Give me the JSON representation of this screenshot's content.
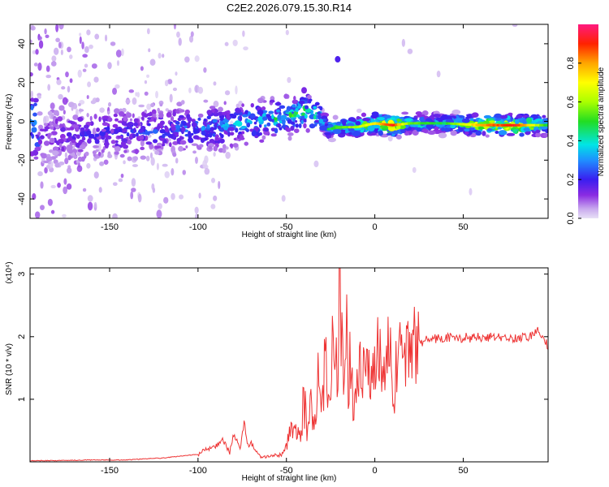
{
  "title": "C2E2.2026.079.15.30.R14",
  "chart_data": [
    {
      "type": "heatmap",
      "name": "spectrogram",
      "xlabel": "Height of straight line (km)",
      "ylabel": "Frequency (Hz)",
      "xlim": [
        -195,
        98
      ],
      "ylim": [
        -50,
        50
      ],
      "xticks": [
        -150,
        -100,
        -50,
        0,
        50
      ],
      "yticks": [
        -40,
        -20,
        0,
        20,
        40
      ],
      "colorbar": {
        "label": "Normalized spectral amplitude",
        "range": [
          0,
          1
        ],
        "ticks": [
          "0.0",
          "0.2",
          "0.4",
          "0.6",
          "0.8"
        ],
        "colormap": [
          "#e8e0f6",
          "#c8a8ee",
          "#8a2be2",
          "#3a1ef0",
          "#1e90ff",
          "#00e5e5",
          "#22dd22",
          "#aaff00",
          "#ffff00",
          "#ffa500",
          "#ff2200",
          "#ff1a80"
        ]
      },
      "ridge": [
        {
          "x": -190,
          "f": -7,
          "a": 0.22
        },
        {
          "x": -170,
          "f": -7,
          "a": 0.28
        },
        {
          "x": -150,
          "f": -6,
          "a": 0.3
        },
        {
          "x": -130,
          "f": -5,
          "a": 0.32
        },
        {
          "x": -110,
          "f": -4,
          "a": 0.35
        },
        {
          "x": -90,
          "f": -3,
          "a": 0.4
        },
        {
          "x": -75,
          "f": -1,
          "a": 0.45
        },
        {
          "x": -60,
          "f": 1,
          "a": 0.5
        },
        {
          "x": -50,
          "f": 2,
          "a": 0.55
        },
        {
          "x": -40,
          "f": 5,
          "a": 0.6
        },
        {
          "x": -32,
          "f": 3,
          "a": 0.55
        },
        {
          "x": -26,
          "f": -4,
          "a": 0.5
        },
        {
          "x": -20,
          "f": -3,
          "a": 0.55
        },
        {
          "x": -10,
          "f": -3,
          "a": 0.62
        },
        {
          "x": 0,
          "f": -1,
          "a": 0.72
        },
        {
          "x": 10,
          "f": -2,
          "a": 0.9
        },
        {
          "x": 20,
          "f": -1,
          "a": 0.55
        },
        {
          "x": 40,
          "f": -1,
          "a": 0.5
        },
        {
          "x": 60,
          "f": -2,
          "a": 0.8
        },
        {
          "x": 80,
          "f": -2,
          "a": 0.9
        },
        {
          "x": 98,
          "f": -2,
          "a": 0.5
        }
      ],
      "isolated_features": [
        {
          "x": -21,
          "f": 32,
          "a": 0.25
        },
        {
          "x": -40,
          "f": 16,
          "a": 0.2
        }
      ]
    },
    {
      "type": "line",
      "name": "snr",
      "xlabel": "Height of straight line (km)",
      "ylabel": "SNR (10 * v/v)",
      "y_scale_note": "(x10⁴)",
      "xlim": [
        -195,
        98
      ],
      "ylim": [
        0,
        3.1
      ],
      "xticks": [
        -150,
        -100,
        -50,
        0,
        50
      ],
      "yticks": [
        1,
        2,
        3
      ],
      "color": "#ee3333",
      "series": [
        {
          "name": "SNR",
          "x": [
            -195,
            -180,
            -160,
            -140,
            -130,
            -120,
            -110,
            -100,
            -95,
            -90,
            -86,
            -82,
            -80,
            -76,
            -74,
            -72,
            -70,
            -65,
            -60,
            -55,
            -52,
            -50,
            -48,
            -45,
            -42,
            -40,
            -38,
            -36,
            -34,
            -32,
            -30,
            -28,
            -26,
            -24,
            -22,
            -21,
            -20,
            -19,
            -18,
            -17,
            -16,
            -15,
            -14,
            -12,
            -10,
            -8,
            -6,
            -4,
            -2,
            0,
            2,
            5,
            8,
            10,
            11,
            12,
            14,
            16,
            20,
            25,
            30,
            35,
            40,
            50,
            60,
            70,
            80,
            88,
            92,
            95,
            98
          ],
          "values": [
            0.02,
            0.02,
            0.03,
            0.03,
            0.05,
            0.06,
            0.09,
            0.12,
            0.2,
            0.25,
            0.35,
            0.15,
            0.45,
            0.2,
            0.65,
            0.25,
            0.3,
            0.1,
            0.08,
            0.1,
            0.12,
            0.3,
            0.45,
            0.4,
            0.55,
            1.0,
            0.5,
            1.1,
            0.6,
            1.3,
            0.7,
            1.6,
            1.0,
            1.9,
            2.3,
            1.6,
            3.1,
            2.0,
            1.4,
            1.2,
            2.2,
            1.0,
            1.6,
            0.9,
            1.2,
            1.5,
            1.4,
            1.5,
            1.3,
            1.55,
            1.75,
            1.4,
            2.1,
            1.2,
            0.55,
            1.7,
            1.65,
            1.75,
            1.85,
            1.9,
            1.95,
            1.97,
            1.98,
            1.98,
            1.99,
            1.99,
            1.98,
            2.0,
            2.1,
            2.05,
            1.85
          ]
        }
      ]
    }
  ]
}
